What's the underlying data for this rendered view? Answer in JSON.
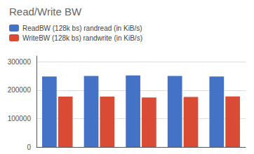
{
  "chart_data": {
    "type": "bar",
    "title": "Read/Write BW",
    "categories": [
      null,
      null,
      null,
      null,
      null
    ],
    "series": [
      {
        "name": "ReadBW (128k bs) randread (in KiB/s)",
        "color": "#4472C4",
        "values": [
          248000,
          250000,
          252000,
          250000,
          248000
        ]
      },
      {
        "name": "WriteBW (128k bs) randwrite (in KiB/s)",
        "color": "#D94B35",
        "values": [
          177000,
          177000,
          174000,
          176000,
          178000
        ]
      }
    ],
    "ylim": [
      0,
      320000
    ],
    "yticks": [
      0,
      100000,
      200000,
      300000
    ],
    "grid": true,
    "legend": "upper left",
    "tick_labels": "y"
  }
}
